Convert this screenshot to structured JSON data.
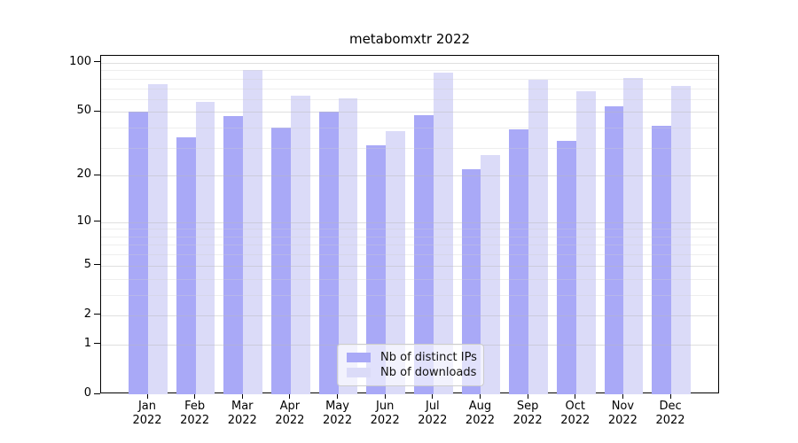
{
  "title": "metabomxtr 2022",
  "chart_data": {
    "type": "bar",
    "title": "metabomxtr 2022",
    "categories": [
      "Jan",
      "Feb",
      "Mar",
      "Apr",
      "May",
      "Jun",
      "Jul",
      "Aug",
      "Sep",
      "Oct",
      "Nov",
      "Dec"
    ],
    "year_label": "2022",
    "series": [
      {
        "name": "Nb of distinct IPs",
        "color": "#a9a9f7",
        "values": [
          50,
          35,
          47,
          40,
          50,
          31,
          48,
          22,
          39,
          33,
          54,
          41
        ]
      },
      {
        "name": "Nb of downloads",
        "color": "#dbdbf8",
        "values": [
          74,
          58,
          90,
          63,
          61,
          38,
          87,
          27,
          79,
          67,
          81,
          72
        ]
      }
    ],
    "xlabel": "",
    "ylabel": "",
    "yscale": "log10(1+y)",
    "ylim": [
      0,
      110
    ],
    "ytick_values": [
      0,
      1,
      2,
      5,
      10,
      20,
      50,
      100
    ],
    "ytick_labels": [
      "0",
      "1",
      "2",
      "5",
      "10",
      "20",
      "50",
      "100"
    ],
    "minor_grid_values": [
      3,
      4,
      6,
      7,
      8,
      9,
      30,
      40,
      60,
      70,
      80,
      90
    ],
    "grid": "on",
    "grid_over_bars": true,
    "legend_position": "lower center",
    "colors": {
      "axis": "#000000",
      "background": "#ffffff",
      "grid_major": "#dfdfdf",
      "grid_minor": "#ececec",
      "bar_distinct_ips": "#a9a9f7",
      "bar_downloads": "#dbdbf8"
    }
  }
}
